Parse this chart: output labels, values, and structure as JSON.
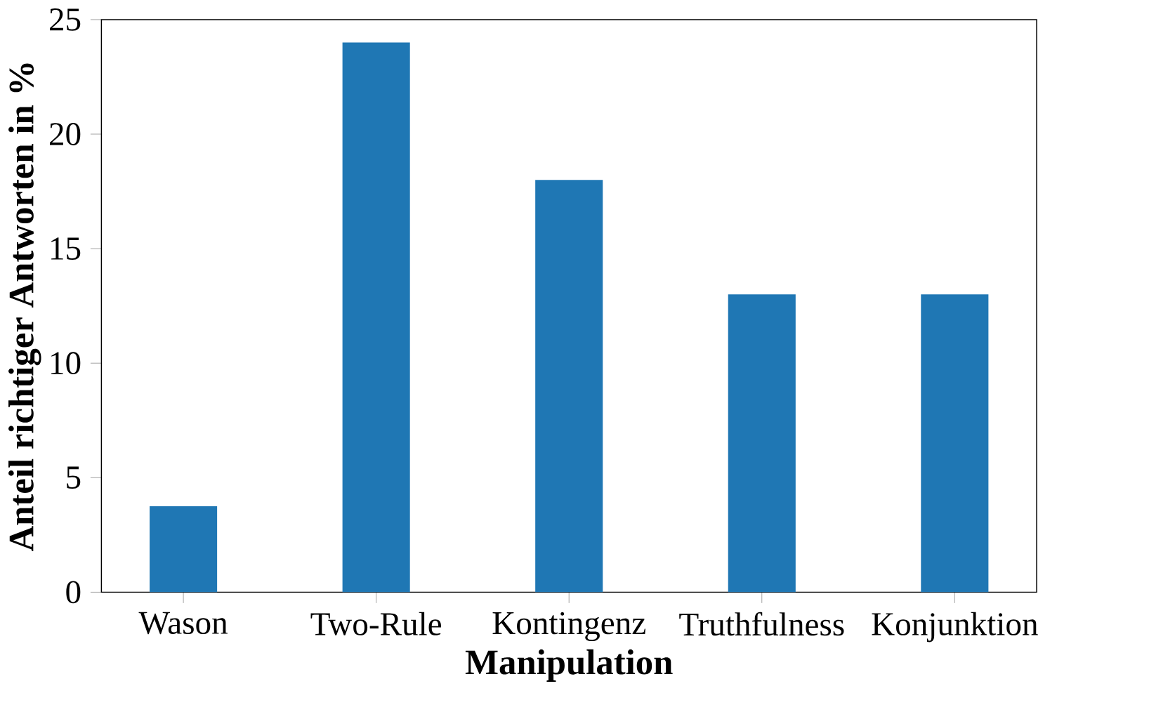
{
  "chart_data": {
    "type": "bar",
    "xlabel": "Manipulation",
    "ylabel": "Anteil richtiger Antworten in %",
    "categories": [
      "Wason",
      "Two-Rule",
      "Kontingenz",
      "Truthfulness",
      "Konjunktion"
    ],
    "values": [
      3.75,
      24.0,
      18.0,
      13.0,
      13.0
    ],
    "color": "#1f77b4",
    "ylim": [
      0,
      25
    ],
    "yticks": [
      0,
      5,
      10,
      15,
      20,
      25
    ],
    "grid": false
  }
}
